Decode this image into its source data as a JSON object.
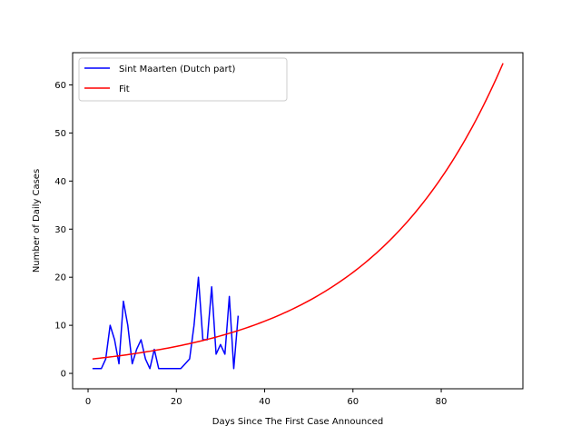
{
  "chart_data": {
    "type": "line",
    "title": "",
    "xlabel": "Days Since The First Case Announced",
    "ylabel": "Number of Daily Cases",
    "xlim": [
      -3.5,
      98.5
    ],
    "ylim": [
      -3.2,
      66.7
    ],
    "xticks": [
      0,
      20,
      40,
      60,
      80
    ],
    "yticks": [
      0,
      10,
      20,
      30,
      40,
      50,
      60
    ],
    "grid": false,
    "legend_position": "top-left",
    "series": [
      {
        "name": "Sint Maarten (Dutch part)",
        "color": "#0000ff",
        "x": [
          1,
          2,
          3,
          4,
          5,
          6,
          7,
          8,
          9,
          10,
          11,
          12,
          13,
          14,
          15,
          16,
          17,
          18,
          19,
          20,
          21,
          22,
          23,
          24,
          25,
          26,
          27,
          28,
          29,
          30,
          31,
          32,
          33,
          34
        ],
        "y": [
          1,
          1,
          1,
          3,
          10,
          7,
          2,
          15,
          10,
          2,
          5,
          7,
          3,
          1,
          5,
          1,
          1,
          1,
          1,
          1,
          1,
          2,
          3,
          10,
          20,
          7,
          7,
          18,
          4,
          6,
          4,
          16,
          1,
          12
        ]
      },
      {
        "name": "Fit",
        "color": "#ff0000",
        "model": "exponential",
        "a": 2.9,
        "b": 0.033,
        "x_range": [
          1,
          94
        ]
      }
    ]
  }
}
